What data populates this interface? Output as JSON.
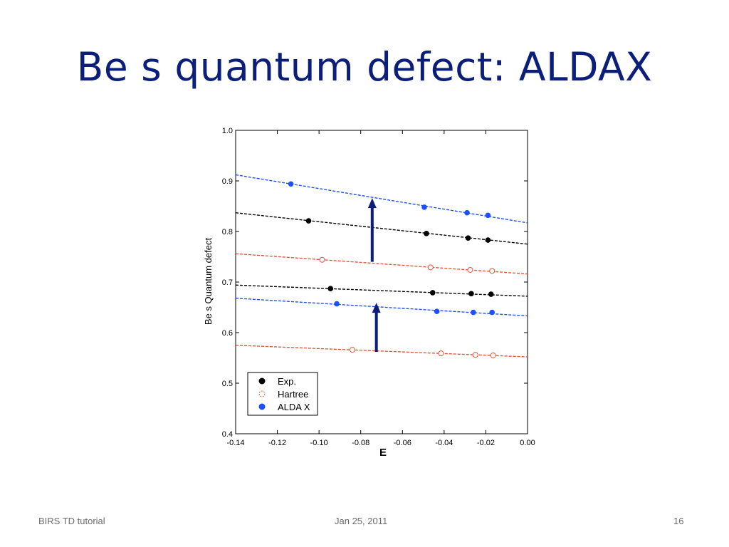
{
  "slide": {
    "title": "Be s quantum defect: ALDAX",
    "footer_left": "BIRS TD tutorial",
    "footer_center": "Jan 25, 2011",
    "page_number": "16"
  },
  "chart_data": {
    "type": "scatter",
    "title": "",
    "xlabel": "E",
    "ylabel": "Be s Quantum defect",
    "xlim": [
      -0.14,
      0.0
    ],
    "ylim": [
      0.4,
      1.0
    ],
    "x_ticks": [
      "-0.14",
      "-0.12",
      "-0.10",
      "-0.08",
      "-0.06",
      "-0.04",
      "-0.02",
      "0.00"
    ],
    "y_ticks": [
      "0.4",
      "0.5",
      "0.6",
      "0.7",
      "0.8",
      "0.9",
      "1.0"
    ],
    "grid": false,
    "legend_placement": "bottom-left",
    "series": [
      {
        "name": "Exp.",
        "color": "#000000",
        "marker": "filled",
        "points": [
          [
            -0.105,
            0.821
          ],
          [
            -0.0485,
            0.796
          ],
          [
            -0.0285,
            0.787
          ],
          [
            -0.019,
            0.783
          ]
        ],
        "fit": [
          [
            -0.14,
            0.837
          ],
          [
            0.0,
            0.775
          ]
        ]
      },
      {
        "name": "Exp.",
        "color": "#000000",
        "marker": "filled",
        "points": [
          [
            -0.0945,
            0.687
          ],
          [
            -0.0455,
            0.679
          ],
          [
            -0.027,
            0.677
          ],
          [
            -0.0175,
            0.676
          ]
        ],
        "fit": [
          [
            -0.14,
            0.694
          ],
          [
            0.0,
            0.672
          ]
        ]
      },
      {
        "name": "Hartree",
        "color": "#e8573a",
        "marker": "open",
        "points": [
          [
            -0.0985,
            0.744
          ],
          [
            -0.0465,
            0.729
          ],
          [
            -0.0275,
            0.724
          ],
          [
            -0.017,
            0.722
          ]
        ],
        "fit": [
          [
            -0.14,
            0.756
          ],
          [
            0.0,
            0.716
          ]
        ]
      },
      {
        "name": "Hartree",
        "color": "#e8573a",
        "marker": "open",
        "points": [
          [
            -0.084,
            0.566
          ],
          [
            -0.0415,
            0.559
          ],
          [
            -0.025,
            0.556
          ],
          [
            -0.0165,
            0.555
          ]
        ],
        "fit": [
          [
            -0.14,
            0.575
          ],
          [
            0.0,
            0.552
          ]
        ]
      },
      {
        "name": "ALDA X",
        "color": "#1f4fff",
        "marker": "filled",
        "points": [
          [
            -0.1135,
            0.894
          ],
          [
            -0.0495,
            0.848
          ],
          [
            -0.029,
            0.837
          ],
          [
            -0.019,
            0.832
          ]
        ],
        "fit": [
          [
            -0.14,
            0.912
          ],
          [
            0.0,
            0.817
          ]
        ]
      },
      {
        "name": "ALDA X",
        "color": "#1f4fff",
        "marker": "filled",
        "points": [
          [
            -0.0915,
            0.657
          ],
          [
            -0.0435,
            0.642
          ],
          [
            -0.026,
            0.64
          ],
          [
            -0.017,
            0.64
          ]
        ],
        "fit": [
          [
            -0.14,
            0.668
          ],
          [
            0.0,
            0.633
          ]
        ]
      }
    ],
    "legend": [
      {
        "label": "Exp.",
        "color": "#000000",
        "marker": "filled"
      },
      {
        "label": "Hartree",
        "color": "#e8573a",
        "marker": "open"
      },
      {
        "label": "ALDA X",
        "color": "#1f4fff",
        "marker": "filled"
      }
    ],
    "arrows": [
      {
        "x": -0.0745,
        "y_from": 0.74,
        "y_to": 0.866,
        "color": "#0b1f7a"
      },
      {
        "x": -0.0725,
        "y_from": 0.562,
        "y_to": 0.659,
        "color": "#0b1f7a"
      }
    ]
  }
}
